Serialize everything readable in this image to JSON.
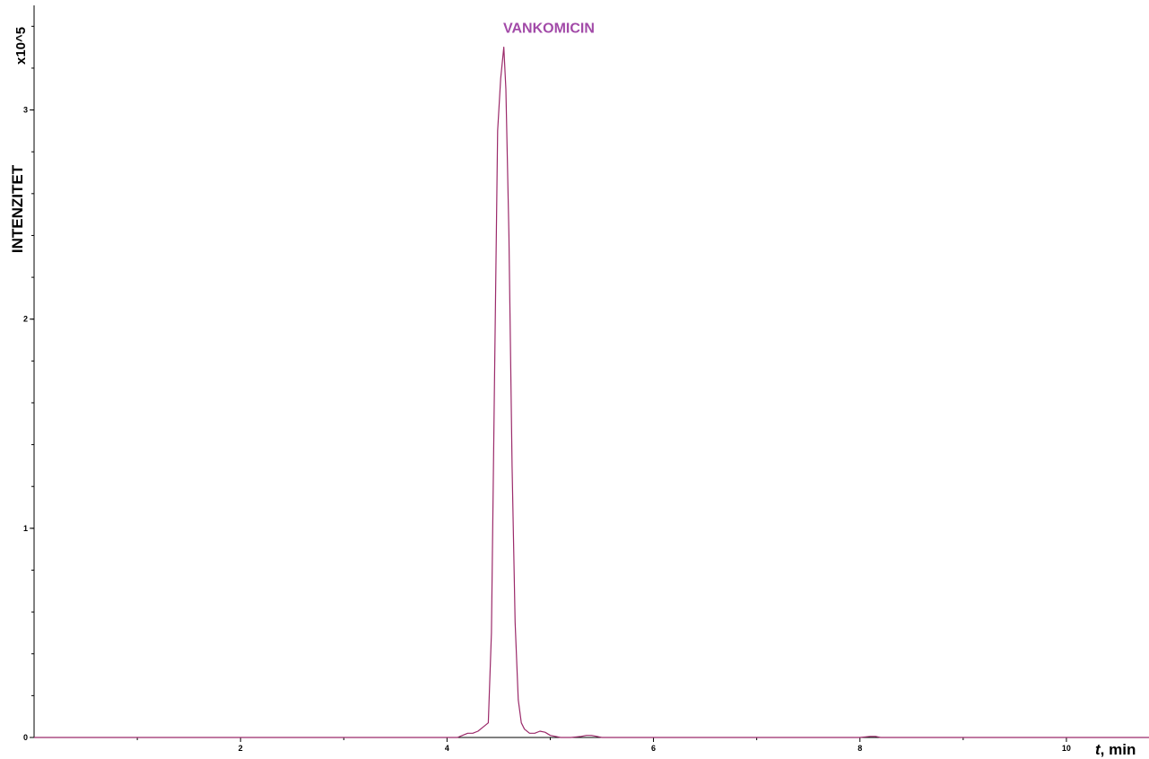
{
  "chart_data": {
    "type": "line",
    "title": "",
    "xlabel_italic": "t",
    "xlabel_rest": ", min",
    "ylabel": "INTENZITET",
    "y_scale_label": "x10^5",
    "xlim": [
      0,
      10.8
    ],
    "ylim": [
      0,
      3.5
    ],
    "x_ticks": [
      2,
      4,
      6,
      8,
      10
    ],
    "x_tick_labels": [
      "2",
      "4",
      "6",
      "8",
      "10"
    ],
    "y_ticks": [
      0,
      1,
      2,
      3
    ],
    "y_tick_labels": [
      "0",
      "1",
      "2",
      "3"
    ],
    "grid": false,
    "series": [
      {
        "color": "#9b2a6a",
        "x": [
          0.0,
          4.05,
          4.1,
          4.15,
          4.2,
          4.25,
          4.3,
          4.35,
          4.4,
          4.43,
          4.46,
          4.49,
          4.52,
          4.55,
          4.57,
          4.6,
          4.63,
          4.66,
          4.69,
          4.72,
          4.75,
          4.8,
          4.85,
          4.9,
          4.95,
          5.0,
          5.05,
          5.1,
          5.2,
          5.3,
          5.35,
          5.4,
          5.45,
          5.5,
          6.0,
          7.0,
          8.0,
          8.1,
          8.15,
          8.2,
          9.0,
          10.0,
          10.8
        ],
        "y": [
          0.0,
          0.0,
          0.0,
          0.01,
          0.02,
          0.02,
          0.03,
          0.05,
          0.07,
          0.5,
          1.7,
          2.9,
          3.15,
          3.3,
          3.1,
          2.4,
          1.3,
          0.55,
          0.18,
          0.07,
          0.04,
          0.02,
          0.02,
          0.03,
          0.025,
          0.01,
          0.005,
          0.0,
          0.0,
          0.005,
          0.01,
          0.01,
          0.005,
          0.0,
          0.0,
          0.0,
          0.0,
          0.005,
          0.005,
          0.0,
          0.0,
          0.0,
          0.0
        ]
      }
    ],
    "annotations": [
      {
        "text": "VANKOMICIN",
        "x": 4.57,
        "y": 3.3,
        "color": "#a24aa8"
      }
    ]
  }
}
